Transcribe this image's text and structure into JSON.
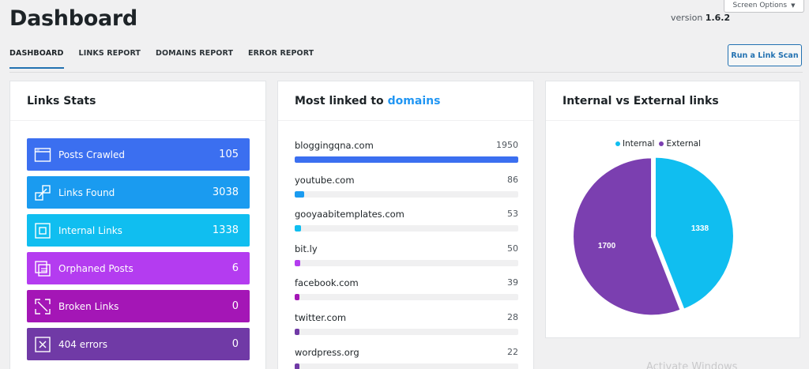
{
  "screen_options": {
    "label": "Screen Options"
  },
  "page": {
    "title": "Dashboard",
    "version_prefix": "version",
    "version": "1.6.2"
  },
  "tabs": [
    {
      "label": "DASHBOARD",
      "active": true
    },
    {
      "label": "LINKS REPORT"
    },
    {
      "label": "DOMAINS REPORT"
    },
    {
      "label": "ERROR REPORT"
    }
  ],
  "actions": {
    "scan_label": "Run a Link Scan"
  },
  "links_stats": {
    "title": "Links Stats",
    "items": [
      {
        "label": "Posts Crawled",
        "value": "105",
        "color": "#3b6ff0",
        "icon": "window-icon"
      },
      {
        "label": "Links Found",
        "value": "3038",
        "color": "#1a9bf0",
        "icon": "link-resize-icon"
      },
      {
        "label": "Internal Links",
        "value": "1338",
        "color": "#10bef0",
        "icon": "internal-box-icon"
      },
      {
        "label": "Orphaned Posts",
        "value": "6",
        "color": "#b43cf0",
        "icon": "pages-icon"
      },
      {
        "label": "Broken Links",
        "value": "0",
        "color": "#a416b6",
        "icon": "broken-link-icon"
      },
      {
        "label": "404 errors",
        "value": "0",
        "color": "#703aa6",
        "icon": "x-box-icon"
      }
    ]
  },
  "domains": {
    "title_prefix": "Most linked to",
    "title_highlight": "domains",
    "items": [
      {
        "domain": "bloggingqna.com",
        "count": "1950",
        "fraction": 1.0,
        "color": "#3b6ff0"
      },
      {
        "domain": "youtube.com",
        "count": "86",
        "fraction": 0.044,
        "color": "#1a9bf0"
      },
      {
        "domain": "gooyaabitemplates.com",
        "count": "53",
        "fraction": 0.027,
        "color": "#10bef0"
      },
      {
        "domain": "bit.ly",
        "count": "50",
        "fraction": 0.026,
        "color": "#b43cf0"
      },
      {
        "domain": "facebook.com",
        "count": "39",
        "fraction": 0.02,
        "color": "#a416b6"
      },
      {
        "domain": "twitter.com",
        "count": "28",
        "fraction": 0.014,
        "color": "#703aa6"
      },
      {
        "domain": "wordpress.org",
        "count": "22",
        "fraction": 0.011,
        "color": "#703aa6"
      }
    ]
  },
  "pie": {
    "title": "Internal vs External links",
    "legend": [
      {
        "label": "Internal",
        "color": "#10bef0"
      },
      {
        "label": "External",
        "color": "#7b3fb0"
      }
    ]
  },
  "chart_data": {
    "type": "pie",
    "title": "Internal vs External links",
    "labels": [
      "Internal",
      "External"
    ],
    "values": [
      1338,
      1700
    ],
    "colors": [
      "#10bef0",
      "#7b3fb0"
    ],
    "legend": "top"
  },
  "watermark": "Activate Windows"
}
